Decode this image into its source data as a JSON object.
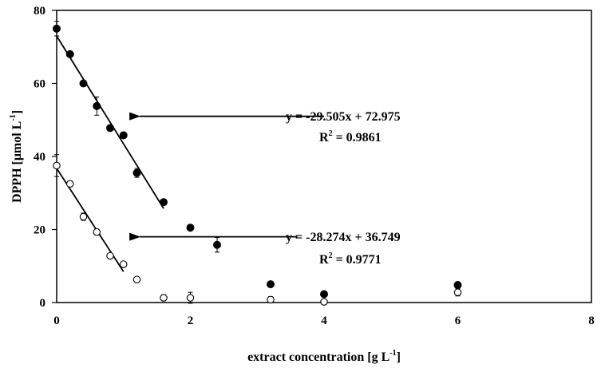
{
  "chart_data": {
    "type": "scatter",
    "title": "",
    "xlabel": {
      "main": "extract concentration [g L",
      "sup": "-1",
      "close": "]"
    },
    "ylabel": {
      "main": "DPPH [μmol L",
      "sup": "-1",
      "close": "]"
    },
    "xlim": [
      0,
      8
    ],
    "ylim": [
      0,
      80
    ],
    "x_ticks": [
      "0",
      "2",
      "4",
      "6",
      "8"
    ],
    "y_ticks": [
      "0",
      "20",
      "40",
      "60",
      "80"
    ],
    "grid": false,
    "legend": "none",
    "series": [
      {
        "marker": "filled-circle",
        "color": "#000000",
        "points": [
          {
            "x": 0,
            "y": 75.0,
            "err": 2.0
          },
          {
            "x": 0.2,
            "y": 68.0
          },
          {
            "x": 0.4,
            "y": 60.0
          },
          {
            "x": 0.6,
            "y": 53.8,
            "err": 2.5
          },
          {
            "x": 0.8,
            "y": 47.8
          },
          {
            "x": 1.0,
            "y": 45.8
          },
          {
            "x": 1.2,
            "y": 35.5,
            "err": 1.2
          },
          {
            "x": 1.6,
            "y": 27.5
          },
          {
            "x": 2.0,
            "y": 20.5
          },
          {
            "x": 2.4,
            "y": 15.8,
            "err": 2.0
          },
          {
            "x": 3.2,
            "y": 5.0
          },
          {
            "x": 4.0,
            "y": 2.3
          },
          {
            "x": 6.0,
            "y": 4.8
          }
        ],
        "fit": {
          "slope": -29.505,
          "intercept": 72.975,
          "x_range": [
            0,
            1.6
          ],
          "equation": "y = -29.505x + 72.975",
          "r2_prefix": "R",
          "r2_sup": "2",
          "r2_value": " = 0.9861"
        }
      },
      {
        "marker": "open-circle",
        "color": "#000000",
        "points": [
          {
            "x": 0,
            "y": 37.5,
            "err": 3.0
          },
          {
            "x": 0.2,
            "y": 32.5,
            "err": 0.8
          },
          {
            "x": 0.4,
            "y": 23.5,
            "err": 1.0
          },
          {
            "x": 0.6,
            "y": 19.3,
            "err": 0.8
          },
          {
            "x": 0.8,
            "y": 12.8,
            "err": 0.5
          },
          {
            "x": 1.0,
            "y": 10.5,
            "err": 0.5
          },
          {
            "x": 1.2,
            "y": 6.3,
            "err": 0.5
          },
          {
            "x": 1.6,
            "y": 1.3,
            "err": 0.8
          },
          {
            "x": 2.0,
            "y": 1.3,
            "err": 1.5
          },
          {
            "x": 3.2,
            "y": 0.8,
            "err": 0.8
          },
          {
            "x": 4.0,
            "y": 0.2,
            "err": 0.5
          },
          {
            "x": 6.0,
            "y": 2.8,
            "err": 1.0
          }
        ],
        "fit": {
          "slope": -28.274,
          "intercept": 36.749,
          "x_range": [
            0,
            1.0
          ],
          "equation": "y = -28.274x + 36.749",
          "r2_prefix": "R",
          "r2_sup": "2",
          "r2_value": " = 0.9771"
        }
      }
    ],
    "annotations": [
      {
        "type": "arrow",
        "series": 0,
        "from_x": 4.0,
        "to_x": 1.1,
        "y": 51.0
      },
      {
        "type": "arrow",
        "series": 1,
        "from_x": 3.6,
        "to_x": 1.1,
        "y": 18.0
      }
    ]
  }
}
